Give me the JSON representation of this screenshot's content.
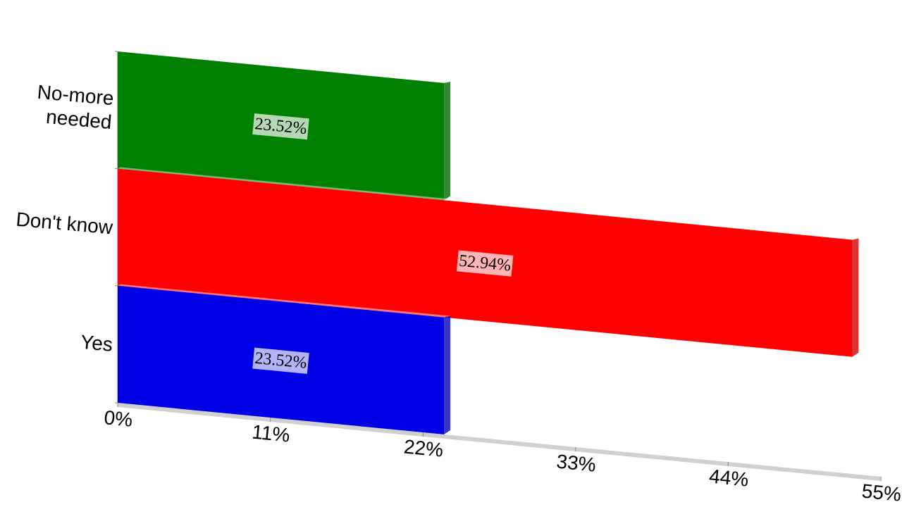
{
  "chart_data": {
    "type": "bar",
    "orientation": "horizontal",
    "categories": [
      "Yes",
      "Don't know",
      "No-more needed"
    ],
    "values": [
      23.52,
      52.94,
      23.52
    ],
    "value_labels": [
      "23.52%",
      "52.94%",
      "23.52%"
    ],
    "colors": [
      "#0000e6",
      "#ff0000",
      "#008000"
    ],
    "xlim": [
      0,
      55
    ],
    "xticks": [
      {
        "value": 0,
        "label": "0%"
      },
      {
        "value": 11,
        "label": "11%"
      },
      {
        "value": 22,
        "label": "22%"
      },
      {
        "value": 33,
        "label": "33%"
      },
      {
        "value": 44,
        "label": "44%"
      },
      {
        "value": 55,
        "label": "55%"
      }
    ]
  }
}
